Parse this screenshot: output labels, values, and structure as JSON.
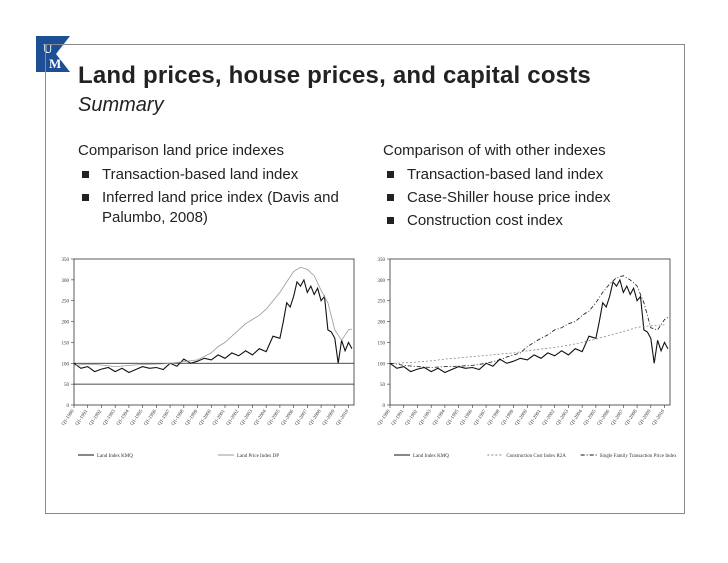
{
  "slide": {
    "title": "Land prices, house prices, and capital costs",
    "subtitle": "Summary",
    "logo_letters": [
      "U",
      "M"
    ],
    "colors": {
      "logo_blue": "#1c4f94",
      "text": "#222222",
      "border": "#8a8a8a"
    }
  },
  "left_col": {
    "heading": "Comparison land price indexes",
    "bullets": [
      "Transaction-based land index",
      "Inferred land price index (Davis and Palumbo, 2008)"
    ]
  },
  "right_col": {
    "heading": "Comparison of with other indexes",
    "bullets": [
      "Transaction-based land index",
      "Case-Shiller house price index",
      "Construction cost index"
    ]
  },
  "chart_data": [
    {
      "type": "line",
      "title": "",
      "ylim": [
        0,
        350
      ],
      "yticks": [
        "0",
        "50",
        "100",
        "150",
        "200",
        "250",
        "300",
        "350"
      ],
      "hlines": [
        50,
        100
      ],
      "xtick_labels": [
        "Q1-1990",
        "Q1-1991",
        "Q1-1992",
        "Q1-1993",
        "Q1-1994",
        "Q1-1995",
        "Q1-1996",
        "Q1-1997",
        "Q1-1998",
        "Q1-1999",
        "Q1-2000",
        "Q1-2001",
        "Q1-2002",
        "Q1-2003",
        "Q1-2004",
        "Q1-2005",
        "Q1-2006",
        "Q1-2007",
        "Q1-2008",
        "Q1-2009",
        "Q1-2010"
      ],
      "legend": [
        "Land Index KMQ",
        "Land Price Index DP"
      ],
      "series": [
        {
          "name": "Land Index KMQ",
          "color": "#111111",
          "dash": "",
          "x": [
            1990,
            1990.5,
            1991,
            1991.5,
            1992,
            1992.5,
            1993,
            1993.5,
            1994,
            1994.5,
            1995,
            1995.5,
            1996,
            1996.5,
            1997,
            1997.5,
            1998,
            1998.5,
            1999,
            1999.5,
            2000,
            2000.5,
            2001,
            2001.5,
            2002,
            2002.5,
            2003,
            2003.5,
            2004,
            2004.5,
            2005,
            2005.25,
            2005.5,
            2005.75,
            2006,
            2006.25,
            2006.5,
            2006.75,
            2007,
            2007.25,
            2007.5,
            2007.75,
            2008,
            2008.25,
            2008.5,
            2008.75,
            2009,
            2009.25,
            2009.5,
            2009.75,
            2010,
            2010.25
          ],
          "values": [
            100,
            88,
            92,
            80,
            86,
            90,
            80,
            88,
            78,
            85,
            92,
            88,
            90,
            85,
            100,
            93,
            110,
            100,
            105,
            112,
            108,
            120,
            112,
            125,
            118,
            130,
            120,
            135,
            128,
            165,
            160,
            200,
            245,
            235,
            260,
            295,
            285,
            300,
            270,
            285,
            265,
            280,
            250,
            260,
            180,
            175,
            160,
            100,
            155,
            130,
            150,
            135
          ]
        },
        {
          "name": "Land Price Index DP",
          "color": "#9a9a9a",
          "dash": "",
          "x": [
            1990,
            1991,
            1992,
            1993,
            1994,
            1995,
            1996,
            1997,
            1998,
            1999,
            2000,
            2000.5,
            2001,
            2001.5,
            2002,
            2002.5,
            2003,
            2003.5,
            2004,
            2004.5,
            2005,
            2005.5,
            2006,
            2006.5,
            2007,
            2007.5,
            2008,
            2008.5,
            2009,
            2009.5,
            2010,
            2010.25
          ],
          "values": [
            95,
            98,
            96,
            92,
            95,
            97,
            98,
            100,
            104,
            108,
            125,
            140,
            150,
            165,
            180,
            195,
            205,
            215,
            230,
            250,
            270,
            295,
            320,
            330,
            325,
            310,
            275,
            245,
            180,
            155,
            180,
            182
          ]
        }
      ]
    },
    {
      "type": "line",
      "title": "",
      "ylim": [
        0,
        350
      ],
      "yticks": [
        "0",
        "50",
        "100",
        "150",
        "200",
        "250",
        "300",
        "350"
      ],
      "xtick_labels": [
        "Q1-1990",
        "Q1-1991",
        "Q1-1992",
        "Q1-1993",
        "Q1-1994",
        "Q1-1995",
        "Q1-1996",
        "Q1-1997",
        "Q1-1998",
        "Q1-1999",
        "Q1-2000",
        "Q1-2001",
        "Q1-2002",
        "Q1-2003",
        "Q1-2004",
        "Q1-2005",
        "Q1-2006",
        "Q1-2007",
        "Q1-2008",
        "Q1-2009",
        "Q1-2010"
      ],
      "legend": [
        "Land Index KMQ",
        "Construction Cost Index R2A",
        "Single Family Transaction Price Index"
      ],
      "series": [
        {
          "name": "Land Index KMQ",
          "color": "#111111",
          "dash": "",
          "x": [
            1990,
            1990.5,
            1991,
            1991.5,
            1992,
            1992.5,
            1993,
            1993.5,
            1994,
            1994.5,
            1995,
            1995.5,
            1996,
            1996.5,
            1997,
            1997.5,
            1998,
            1998.5,
            1999,
            1999.5,
            2000,
            2000.5,
            2001,
            2001.5,
            2002,
            2002.5,
            2003,
            2003.5,
            2004,
            2004.5,
            2005,
            2005.25,
            2005.5,
            2005.75,
            2006,
            2006.25,
            2006.5,
            2006.75,
            2007,
            2007.25,
            2007.5,
            2007.75,
            2008,
            2008.25,
            2008.5,
            2008.75,
            2009,
            2009.25,
            2009.5,
            2009.75,
            2010,
            2010.25
          ],
          "values": [
            100,
            88,
            92,
            80,
            86,
            90,
            80,
            88,
            78,
            85,
            92,
            88,
            90,
            85,
            100,
            93,
            110,
            100,
            105,
            112,
            108,
            120,
            112,
            125,
            118,
            130,
            120,
            135,
            128,
            165,
            160,
            200,
            245,
            235,
            260,
            295,
            285,
            300,
            270,
            285,
            265,
            280,
            250,
            260,
            180,
            175,
            160,
            100,
            155,
            130,
            150,
            135
          ]
        },
        {
          "name": "Construction Cost Index R2A",
          "color": "#8a8a8a",
          "dash": "2,2",
          "x": [
            1990,
            1991,
            1992,
            1993,
            1994,
            1995,
            1996,
            1997,
            1998,
            1999,
            2000,
            2001,
            2002,
            2003,
            2004,
            2005,
            2006,
            2007,
            2008,
            2009,
            2010
          ],
          "values": [
            100,
            101,
            103,
            106,
            110,
            113,
            116,
            119,
            122,
            125,
            130,
            134,
            138,
            143,
            150,
            158,
            167,
            176,
            186,
            190,
            192
          ]
        },
        {
          "name": "Single Family Transaction Price Index",
          "color": "#111111",
          "dash": "4,2,1,2",
          "x": [
            1990,
            1990.5,
            1991,
            1992,
            1993,
            1994,
            1995,
            1996,
            1997,
            1998,
            1998.5,
            1999,
            1999.5,
            2000,
            2000.5,
            2001,
            2001.5,
            2002,
            2002.5,
            2003,
            2003.5,
            2004,
            2004.5,
            2005,
            2005.5,
            2006,
            2006.5,
            2007,
            2007.5,
            2008,
            2008.5,
            2009,
            2009.5,
            2010,
            2010.25
          ],
          "values": [
            100,
            98,
            95,
            92,
            90,
            92,
            93,
            95,
            100,
            108,
            115,
            120,
            125,
            140,
            150,
            160,
            168,
            180,
            185,
            195,
            200,
            215,
            225,
            245,
            270,
            290,
            305,
            310,
            300,
            285,
            245,
            185,
            180,
            205,
            210
          ]
        }
      ]
    }
  ]
}
